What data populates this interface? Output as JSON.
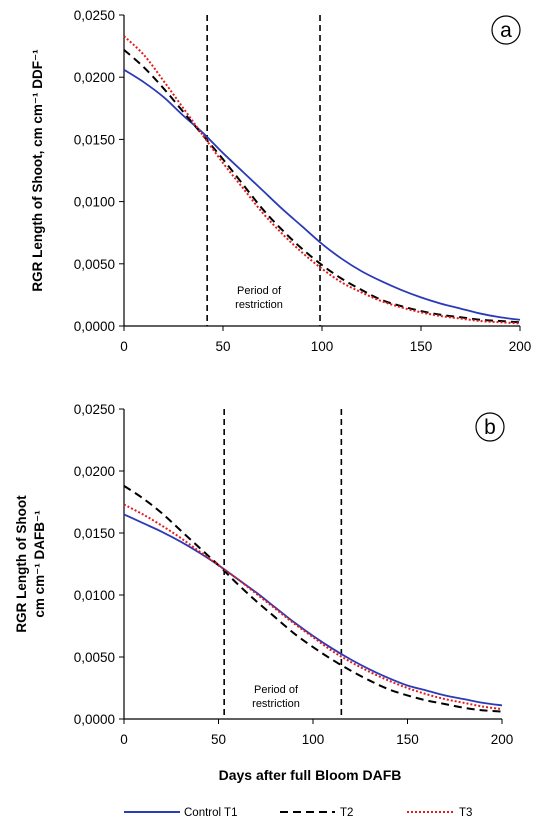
{
  "colors": {
    "control": "#2b3ab7",
    "t2": "#000000",
    "t3": "#e31b1b"
  },
  "xlabel": "Days after full Bloom DAFB",
  "legend": [
    {
      "key": "control",
      "label": "Control T1",
      "style": "solid"
    },
    {
      "key": "t2",
      "label": "T2",
      "style": "dashed"
    },
    {
      "key": "t3",
      "label": "T3",
      "style": "dotted"
    }
  ],
  "chart_data": [
    {
      "type": "line",
      "panel_label": "a",
      "ylabel": "RGR Length of Shoot, cm cm⁻¹ DDF⁻¹",
      "xlim": [
        0,
        200
      ],
      "ylim": [
        0,
        0.025
      ],
      "x_ticks": [
        "0",
        "50",
        "100",
        "150",
        "200"
      ],
      "y_ticks": [
        "0,0000",
        "0,0050",
        "0,0100",
        "0,0150",
        "0,0200",
        "0,0250"
      ],
      "grid": false,
      "vlines": [
        42,
        99
      ],
      "annotation": [
        "Period of",
        "restriction"
      ],
      "x": [
        0,
        10,
        20,
        30,
        40,
        50,
        60,
        70,
        80,
        90,
        100,
        110,
        120,
        130,
        140,
        150,
        160,
        170,
        180,
        190,
        200
      ],
      "series": [
        {
          "key": "control",
          "values": [
            0.0206,
            0.0196,
            0.0184,
            0.0169,
            0.0155,
            0.0139,
            0.0124,
            0.0109,
            0.0094,
            0.008,
            0.0066,
            0.0054,
            0.0044,
            0.0036,
            0.0029,
            0.0023,
            0.0018,
            0.0014,
            0.001,
            0.0007,
            0.0005
          ]
        },
        {
          "key": "t2",
          "values": [
            0.0222,
            0.0208,
            0.0191,
            0.0172,
            0.0153,
            0.0134,
            0.0114,
            0.0094,
            0.0077,
            0.0062,
            0.0049,
            0.0038,
            0.0029,
            0.0021,
            0.0016,
            0.0012,
            0.0009,
            0.0007,
            0.0005,
            0.0004,
            0.0003
          ]
        },
        {
          "key": "t3",
          "values": [
            0.0233,
            0.0218,
            0.0197,
            0.0175,
            0.0153,
            0.0131,
            0.0111,
            0.0091,
            0.0074,
            0.0059,
            0.0046,
            0.0035,
            0.0027,
            0.002,
            0.0015,
            0.0011,
            0.0008,
            0.0006,
            0.0004,
            0.0003,
            0.0002
          ]
        }
      ]
    },
    {
      "type": "line",
      "panel_label": "b",
      "ylabel": [
        "RGR Length of Shoot",
        "cm cm⁻¹ DAFB⁻¹"
      ],
      "xlim": [
        0,
        200
      ],
      "ylim": [
        0,
        0.025
      ],
      "x_ticks": [
        "0",
        "50",
        "100",
        "150",
        "200"
      ],
      "y_ticks": [
        "0,0000",
        "0,0050",
        "0,0100",
        "0,0150",
        "0,0200",
        "0,0250"
      ],
      "grid": false,
      "vlines": [
        53,
        115
      ],
      "annotation": [
        "Period of",
        "restriction"
      ],
      "x": [
        0,
        10,
        20,
        30,
        40,
        50,
        60,
        70,
        80,
        90,
        100,
        110,
        120,
        130,
        140,
        150,
        160,
        170,
        180,
        190,
        200
      ],
      "series": [
        {
          "key": "control",
          "values": [
            0.0165,
            0.0158,
            0.0151,
            0.0143,
            0.0134,
            0.0124,
            0.0113,
            0.0102,
            0.009,
            0.0078,
            0.0067,
            0.0057,
            0.0048,
            0.004,
            0.0033,
            0.0027,
            0.0023,
            0.0019,
            0.0016,
            0.0013,
            0.0011
          ]
        },
        {
          "key": "t2",
          "values": [
            0.0188,
            0.0178,
            0.0166,
            0.0152,
            0.0138,
            0.0124,
            0.0109,
            0.0095,
            0.0082,
            0.0069,
            0.0058,
            0.0048,
            0.0039,
            0.0031,
            0.0024,
            0.0019,
            0.0015,
            0.0012,
            0.0009,
            0.0007,
            0.0006
          ]
        },
        {
          "key": "t3",
          "values": [
            0.0173,
            0.0165,
            0.0156,
            0.0146,
            0.0135,
            0.0124,
            0.0113,
            0.0101,
            0.0089,
            0.0077,
            0.0066,
            0.0055,
            0.0046,
            0.0038,
            0.0031,
            0.0025,
            0.002,
            0.0016,
            0.0013,
            0.001,
            0.0008
          ]
        }
      ]
    }
  ]
}
